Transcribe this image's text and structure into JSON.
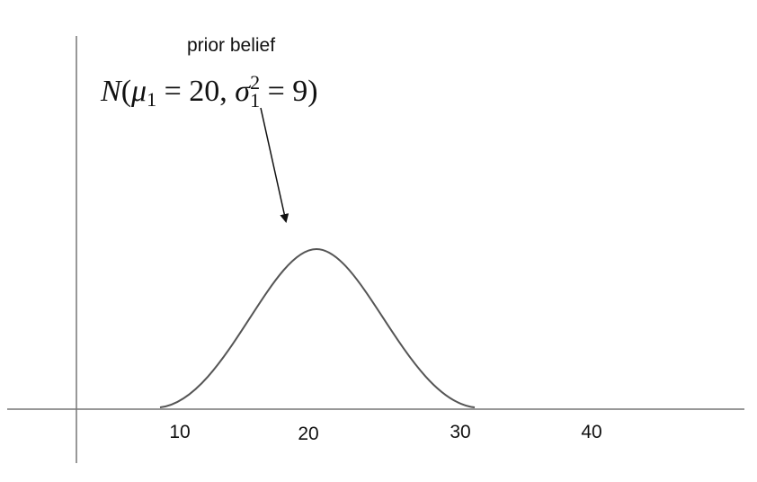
{
  "annotation": {
    "label": "prior belief",
    "formula": {
      "name": "N",
      "open": "(",
      "mean_symbol": "μ",
      "mean_index": "1",
      "mean_eq": " = 20, ",
      "var_symbol": "σ",
      "var_index": "1",
      "var_power": "2",
      "var_eq": " = 9)"
    }
  },
  "axis": {
    "labels": [
      "10",
      "20",
      "30",
      "40"
    ]
  }
}
